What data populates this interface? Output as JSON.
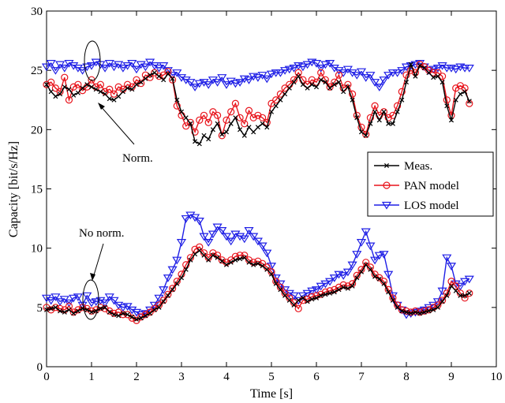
{
  "chart_data": {
    "type": "line",
    "xlabel": "Time [s]",
    "ylabel": "Capacity [bit/s/Hz]",
    "xlim": [
      0,
      10
    ],
    "ylim": [
      0,
      30
    ],
    "xticks": [
      0,
      1,
      2,
      3,
      4,
      5,
      6,
      7,
      8,
      9,
      10
    ],
    "yticks": [
      0,
      5,
      10,
      15,
      20,
      25,
      30
    ],
    "grid": false,
    "legend_position": "right",
    "annotations": [
      {
        "text": "Norm.",
        "points_to": [
          1.1,
          23.5
        ]
      },
      {
        "text": "No norm.",
        "points_to": [
          1.0,
          5.3
        ]
      }
    ],
    "series": [
      {
        "name": "Meas.",
        "color": "#000000",
        "marker": "x",
        "x": [
          0.0,
          0.1,
          0.2,
          0.3,
          0.4,
          0.5,
          0.6,
          0.7,
          0.8,
          0.9,
          1.0,
          1.1,
          1.2,
          1.3,
          1.4,
          1.5,
          1.6,
          1.7,
          1.8,
          1.9,
          2.0,
          2.1,
          2.2,
          2.3,
          2.4,
          2.5,
          2.6,
          2.7,
          2.8,
          2.9,
          3.0,
          3.1,
          3.2,
          3.3,
          3.4,
          3.5,
          3.6,
          3.7,
          3.8,
          3.9,
          4.0,
          4.1,
          4.2,
          4.3,
          4.4,
          4.5,
          4.6,
          4.7,
          4.8,
          4.9,
          5.0,
          5.1,
          5.2,
          5.3,
          5.4,
          5.5,
          5.6,
          5.7,
          5.8,
          5.9,
          6.0,
          6.1,
          6.2,
          6.3,
          6.4,
          6.5,
          6.6,
          6.7,
          6.8,
          6.9,
          7.0,
          7.1,
          7.2,
          7.3,
          7.4,
          7.5,
          7.6,
          7.7,
          7.8,
          7.9,
          8.0,
          8.1,
          8.2,
          8.3,
          8.4,
          8.5,
          8.6,
          8.7,
          8.8,
          8.9,
          9.0,
          9.1,
          9.2,
          9.3,
          9.4
        ],
        "y_upper": [
          23.8,
          23.2,
          22.8,
          23.0,
          23.6,
          23.4,
          22.9,
          23.1,
          23.5,
          23.8,
          23.6,
          23.4,
          23.2,
          23.0,
          22.6,
          22.5,
          22.8,
          23.2,
          23.5,
          23.4,
          23.8,
          24.0,
          24.3,
          24.6,
          24.8,
          24.5,
          24.2,
          24.7,
          24.3,
          22.5,
          21.5,
          21.0,
          20.5,
          19.0,
          18.8,
          19.5,
          19.2,
          20.0,
          20.5,
          19.6,
          19.8,
          20.5,
          21.0,
          20.0,
          19.5,
          20.2,
          19.8,
          20.2,
          20.5,
          20.2,
          21.5,
          22.0,
          22.5,
          23.0,
          23.5,
          24.0,
          24.5,
          23.8,
          23.5,
          23.8,
          23.6,
          24.2,
          24.0,
          23.5,
          23.8,
          24.0,
          23.2,
          23.6,
          22.5,
          21.0,
          19.8,
          19.5,
          20.5,
          21.5,
          20.8,
          21.5,
          20.5,
          20.5,
          21.5,
          22.5,
          24.0,
          25.5,
          24.5,
          25.4,
          25.2,
          24.8,
          24.4,
          24.5,
          24.0,
          22.0,
          20.8,
          22.5,
          23.0,
          23.2,
          22.4
        ],
        "y_lower": [
          4.8,
          4.9,
          5.0,
          4.7,
          4.6,
          4.8,
          4.5,
          4.7,
          4.9,
          4.8,
          4.6,
          4.7,
          4.9,
          5.0,
          4.6,
          4.4,
          4.3,
          4.5,
          4.4,
          4.2,
          4.0,
          4.1,
          4.3,
          4.5,
          4.8,
          5.0,
          5.5,
          6.0,
          6.5,
          7.0,
          7.5,
          8.2,
          9.0,
          9.5,
          9.8,
          9.4,
          9.0,
          9.4,
          9.2,
          8.9,
          8.6,
          8.8,
          9.0,
          9.1,
          9.2,
          8.8,
          8.6,
          8.7,
          8.5,
          8.2,
          7.8,
          7.0,
          6.5,
          6.0,
          5.6,
          5.2,
          5.6,
          5.8,
          5.5,
          5.7,
          5.8,
          6.0,
          6.1,
          6.2,
          6.3,
          6.5,
          6.7,
          6.6,
          6.8,
          7.5,
          8.0,
          8.6,
          8.2,
          7.6,
          7.4,
          7.0,
          6.3,
          5.6,
          5.0,
          4.7,
          4.6,
          4.5,
          4.6,
          4.5,
          4.6,
          4.7,
          4.8,
          5.0,
          5.5,
          6.0,
          6.8,
          6.4,
          6.0,
          6.0,
          6.2
        ]
      },
      {
        "name": "PAN model",
        "color": "#e8141c",
        "marker": "o",
        "x": [
          0.0,
          0.1,
          0.2,
          0.3,
          0.4,
          0.5,
          0.6,
          0.7,
          0.8,
          0.9,
          1.0,
          1.1,
          1.2,
          1.3,
          1.4,
          1.5,
          1.6,
          1.7,
          1.8,
          1.9,
          2.0,
          2.1,
          2.2,
          2.3,
          2.4,
          2.5,
          2.6,
          2.7,
          2.8,
          2.9,
          3.0,
          3.1,
          3.2,
          3.3,
          3.4,
          3.5,
          3.6,
          3.7,
          3.8,
          3.9,
          4.0,
          4.1,
          4.2,
          4.3,
          4.4,
          4.5,
          4.6,
          4.7,
          4.8,
          4.9,
          5.0,
          5.1,
          5.2,
          5.3,
          5.4,
          5.5,
          5.6,
          5.7,
          5.8,
          5.9,
          6.0,
          6.1,
          6.2,
          6.3,
          6.4,
          6.5,
          6.6,
          6.7,
          6.8,
          6.9,
          7.0,
          7.1,
          7.2,
          7.3,
          7.4,
          7.5,
          7.6,
          7.7,
          7.8,
          7.9,
          8.0,
          8.1,
          8.2,
          8.3,
          8.4,
          8.5,
          8.6,
          8.7,
          8.8,
          8.9,
          9.0,
          9.1,
          9.2,
          9.3,
          9.4
        ],
        "y_upper": [
          23.8,
          24.0,
          23.5,
          23.2,
          24.4,
          22.5,
          23.6,
          23.8,
          23.3,
          23.6,
          24.2,
          23.6,
          23.8,
          23.2,
          23.4,
          23.0,
          23.6,
          23.4,
          23.8,
          23.6,
          24.2,
          23.9,
          24.6,
          24.4,
          24.8,
          24.5,
          24.6,
          24.9,
          24.2,
          22.0,
          21.2,
          20.3,
          20.6,
          19.8,
          20.8,
          21.2,
          20.6,
          21.5,
          21.2,
          19.5,
          20.8,
          21.5,
          22.2,
          21.0,
          20.5,
          21.6,
          21.0,
          21.2,
          21.0,
          20.6,
          22.2,
          22.5,
          23.0,
          23.5,
          23.8,
          24.2,
          24.8,
          24.2,
          23.8,
          24.2,
          24.0,
          24.8,
          24.2,
          23.6,
          24.0,
          24.6,
          23.5,
          23.8,
          23.0,
          21.2,
          20.2,
          19.6,
          21.0,
          22.0,
          21.2,
          21.5,
          21.0,
          21.2,
          22.0,
          23.2,
          24.6,
          25.0,
          24.8,
          25.5,
          25.3,
          25.0,
          24.8,
          24.8,
          24.5,
          22.5,
          21.2,
          23.5,
          23.7,
          23.5,
          22.2
        ],
        "y_lower": [
          5.0,
          4.8,
          5.0,
          4.9,
          4.8,
          5.1,
          4.6,
          4.8,
          5.0,
          4.9,
          4.7,
          4.8,
          5.0,
          4.9,
          4.7,
          4.5,
          4.6,
          4.4,
          4.4,
          4.1,
          3.9,
          4.2,
          4.4,
          4.6,
          4.9,
          5.2,
          5.6,
          6.1,
          6.6,
          7.2,
          7.8,
          8.6,
          9.2,
          9.9,
          10.1,
          9.6,
          9.2,
          9.6,
          9.4,
          9.0,
          8.8,
          9.0,
          9.3,
          9.4,
          9.4,
          9.0,
          8.8,
          8.9,
          8.7,
          8.4,
          8.0,
          7.2,
          6.7,
          6.2,
          5.8,
          5.4,
          4.9,
          5.6,
          5.7,
          5.9,
          6.0,
          6.1,
          6.3,
          6.4,
          6.5,
          6.7,
          6.9,
          6.8,
          7.0,
          7.7,
          8.2,
          8.8,
          8.4,
          7.8,
          7.5,
          7.2,
          6.5,
          5.8,
          5.2,
          4.8,
          4.7,
          4.6,
          4.7,
          4.6,
          4.7,
          4.8,
          5.0,
          5.2,
          5.6,
          6.2,
          7.2,
          6.8,
          6.2,
          5.8,
          6.2
        ]
      },
      {
        "name": "LOS model",
        "color": "#1f1fe6",
        "marker": "v",
        "x": [
          0.0,
          0.1,
          0.2,
          0.3,
          0.4,
          0.5,
          0.6,
          0.7,
          0.8,
          0.9,
          1.0,
          1.1,
          1.2,
          1.3,
          1.4,
          1.5,
          1.6,
          1.7,
          1.8,
          1.9,
          2.0,
          2.1,
          2.2,
          2.3,
          2.4,
          2.5,
          2.6,
          2.7,
          2.8,
          2.9,
          3.0,
          3.1,
          3.2,
          3.3,
          3.4,
          3.5,
          3.6,
          3.7,
          3.8,
          3.9,
          4.0,
          4.1,
          4.2,
          4.3,
          4.4,
          4.5,
          4.6,
          4.7,
          4.8,
          4.9,
          5.0,
          5.1,
          5.2,
          5.3,
          5.4,
          5.5,
          5.6,
          5.7,
          5.8,
          5.9,
          6.0,
          6.1,
          6.2,
          6.3,
          6.4,
          6.5,
          6.6,
          6.7,
          6.8,
          6.9,
          7.0,
          7.1,
          7.2,
          7.3,
          7.4,
          7.5,
          7.6,
          7.7,
          7.8,
          7.9,
          8.0,
          8.1,
          8.2,
          8.3,
          8.4,
          8.5,
          8.6,
          8.7,
          8.8,
          8.9,
          9.0,
          9.1,
          9.2,
          9.3,
          9.4
        ],
        "y_upper": [
          25.3,
          25.6,
          25.0,
          25.5,
          25.2,
          25.6,
          25.4,
          25.2,
          25.0,
          25.3,
          25.4,
          25.7,
          25.5,
          25.2,
          25.6,
          25.3,
          25.5,
          25.2,
          25.4,
          25.6,
          25.1,
          25.5,
          25.3,
          25.7,
          25.4,
          25.2,
          25.4,
          25.0,
          24.6,
          24.8,
          24.4,
          24.2,
          24.0,
          23.6,
          23.9,
          24.0,
          23.8,
          24.2,
          24.0,
          24.4,
          23.8,
          24.1,
          23.9,
          24.0,
          24.3,
          24.2,
          24.5,
          24.4,
          24.6,
          24.3,
          24.7,
          24.8,
          24.8,
          25.0,
          25.1,
          25.2,
          25.4,
          25.3,
          25.5,
          25.7,
          25.6,
          25.2,
          25.5,
          25.6,
          25.2,
          25.0,
          24.8,
          25.1,
          24.8,
          24.6,
          24.9,
          24.4,
          24.6,
          24.0,
          23.6,
          24.2,
          24.6,
          24.8,
          24.8,
          25.0,
          25.3,
          25.4,
          25.5,
          25.6,
          25.3,
          25.0,
          25.1,
          25.2,
          25.4,
          25.2,
          25.2,
          25.1,
          25.3,
          25.2,
          25.2
        ],
        "y_lower": [
          5.8,
          5.6,
          5.9,
          5.5,
          5.7,
          5.4,
          5.8,
          5.9,
          5.2,
          6.0,
          5.4,
          5.5,
          5.6,
          5.4,
          5.9,
          5.6,
          5.2,
          5.0,
          5.1,
          4.8,
          4.6,
          4.4,
          4.5,
          4.8,
          5.2,
          5.8,
          6.5,
          7.5,
          8.2,
          9.0,
          10.5,
          12.5,
          12.8,
          12.6,
          12.3,
          11.0,
          10.5,
          11.2,
          11.8,
          11.5,
          11.0,
          10.6,
          11.2,
          11.0,
          10.8,
          11.5,
          11.0,
          10.6,
          10.2,
          9.6,
          8.5,
          7.5,
          7.0,
          6.5,
          6.2,
          6.0,
          5.6,
          6.0,
          6.2,
          6.4,
          6.5,
          6.8,
          7.0,
          7.2,
          7.5,
          7.8,
          7.7,
          8.0,
          8.6,
          9.5,
          10.5,
          11.4,
          10.2,
          9.0,
          9.4,
          9.5,
          7.8,
          6.0,
          5.2,
          4.8,
          4.4,
          4.5,
          4.6,
          4.7,
          4.8,
          5.0,
          5.2,
          5.5,
          6.4,
          9.2,
          8.5,
          7.0,
          6.8,
          7.2,
          7.4
        ]
      }
    ]
  }
}
